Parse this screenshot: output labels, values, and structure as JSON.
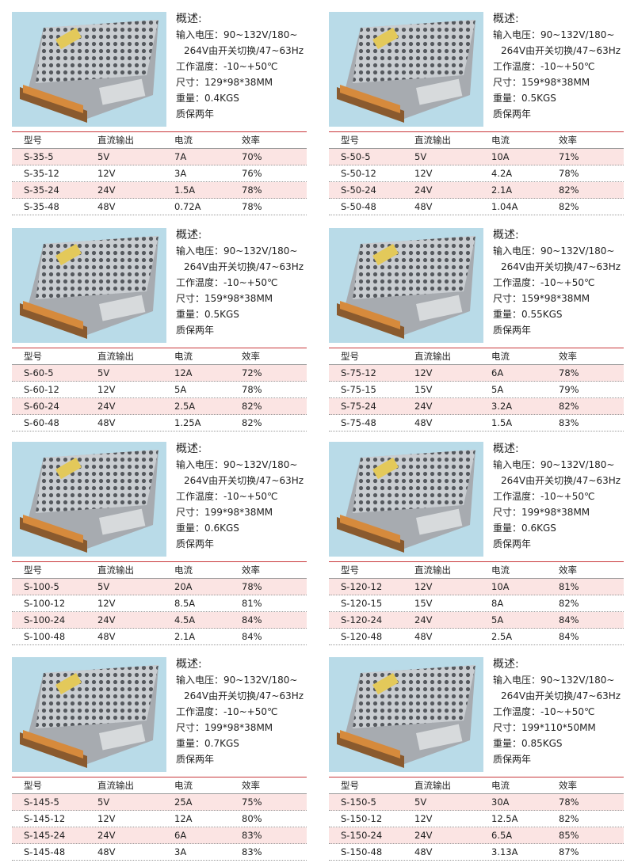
{
  "overview_label": "概述:",
  "table_header": [
    "型号",
    "直流输出",
    "电流",
    "效率"
  ],
  "products": [
    {
      "lines": [
        "输入电压：90~132V/180~",
        "264V由开关切换/47~63Hz",
        "工作温度：-10~+50℃",
        "尺寸：129*98*38MM",
        "重量：0.4KGS",
        "质保两年"
      ],
      "rows": [
        [
          "S-35-5",
          "5V",
          "7A",
          "70%"
        ],
        [
          "S-35-12",
          "12V",
          "3A",
          "76%"
        ],
        [
          "S-35-24",
          "24V",
          "1.5A",
          "78%"
        ],
        [
          "S-35-48",
          "48V",
          "0.72A",
          "78%"
        ]
      ]
    },
    {
      "lines": [
        "输入电压：90~132V/180~",
        "264V由开关切换/47~63Hz",
        "工作温度：-10~+50℃",
        "尺寸：159*98*38MM",
        "重量：0.5KGS",
        "质保两年"
      ],
      "rows": [
        [
          "S-50-5",
          "5V",
          "10A",
          "71%"
        ],
        [
          "S-50-12",
          "12V",
          "4.2A",
          "78%"
        ],
        [
          "S-50-24",
          "24V",
          "2.1A",
          "82%"
        ],
        [
          "S-50-48",
          "48V",
          "1.04A",
          "82%"
        ]
      ]
    },
    {
      "lines": [
        "输入电压：90~132V/180~",
        "264V由开关切换/47~63Hz",
        "工作温度：-10~+50℃",
        "尺寸：159*98*38MM",
        "重量：0.5KGS",
        "质保两年"
      ],
      "rows": [
        [
          "S-60-5",
          "5V",
          "12A",
          "72%"
        ],
        [
          "S-60-12",
          "12V",
          "5A",
          "78%"
        ],
        [
          "S-60-24",
          "24V",
          "2.5A",
          "82%"
        ],
        [
          "S-60-48",
          "48V",
          "1.25A",
          "82%"
        ]
      ]
    },
    {
      "lines": [
        "输入电压：90~132V/180~",
        "264V由开关切换/47~63Hz",
        "工作温度：-10~+50℃",
        "尺寸：159*98*38MM",
        "重量：0.55KGS",
        "质保两年"
      ],
      "rows": [
        [
          "S-75-12",
          "12V",
          "6A",
          "78%"
        ],
        [
          "S-75-15",
          "15V",
          "5A",
          "79%"
        ],
        [
          "S-75-24",
          "24V",
          "3.2A",
          "82%"
        ],
        [
          "S-75-48",
          "48V",
          "1.5A",
          "83%"
        ]
      ]
    },
    {
      "lines": [
        "输入电压：90~132V/180~",
        "264V由开关切换/47~63Hz",
        "工作温度：-10~+50℃",
        "尺寸：199*98*38MM",
        "重量：0.6KGS",
        "质保两年"
      ],
      "rows": [
        [
          "S-100-5",
          "5V",
          "20A",
          "78%"
        ],
        [
          "S-100-12",
          "12V",
          "8.5A",
          "81%"
        ],
        [
          "S-100-24",
          "24V",
          "4.5A",
          "84%"
        ],
        [
          "S-100-48",
          "48V",
          "2.1A",
          "84%"
        ]
      ]
    },
    {
      "lines": [
        "输入电压：90~132V/180~",
        "264V由开关切换/47~63Hz",
        "工作温度：-10~+50℃",
        "尺寸：199*98*38MM",
        "重量：0.6KGS",
        "质保两年"
      ],
      "rows": [
        [
          "S-120-12",
          "12V",
          "10A",
          "81%"
        ],
        [
          "S-120-15",
          "15V",
          "8A",
          "82%"
        ],
        [
          "S-120-24",
          "24V",
          "5A",
          "84%"
        ],
        [
          "S-120-48",
          "48V",
          "2.5A",
          "84%"
        ]
      ]
    },
    {
      "lines": [
        "输入电压：90~132V/180~",
        "264V由开关切换/47~63Hz",
        "工作温度：-10~+50℃",
        "尺寸：199*98*38MM",
        "重量：0.7KGS",
        "质保两年"
      ],
      "rows": [
        [
          "S-145-5",
          "5V",
          "25A",
          "75%"
        ],
        [
          "S-145-12",
          "12V",
          "12A",
          "80%"
        ],
        [
          "S-145-24",
          "24V",
          "6A",
          "83%"
        ],
        [
          "S-145-48",
          "48V",
          "3A",
          "83%"
        ]
      ]
    },
    {
      "lines": [
        "输入电压：90~132V/180~",
        "264V由开关切换/47~63Hz",
        "工作温度：-10~+50℃",
        "尺寸：199*110*50MM",
        "重量：0.85KGS",
        "质保两年"
      ],
      "rows": [
        [
          "S-150-5",
          "5V",
          "30A",
          "78%"
        ],
        [
          "S-150-12",
          "12V",
          "12.5A",
          "82%"
        ],
        [
          "S-150-24",
          "24V",
          "6.5A",
          "85%"
        ],
        [
          "S-150-48",
          "48V",
          "3.13A",
          "87%"
        ]
      ]
    }
  ]
}
